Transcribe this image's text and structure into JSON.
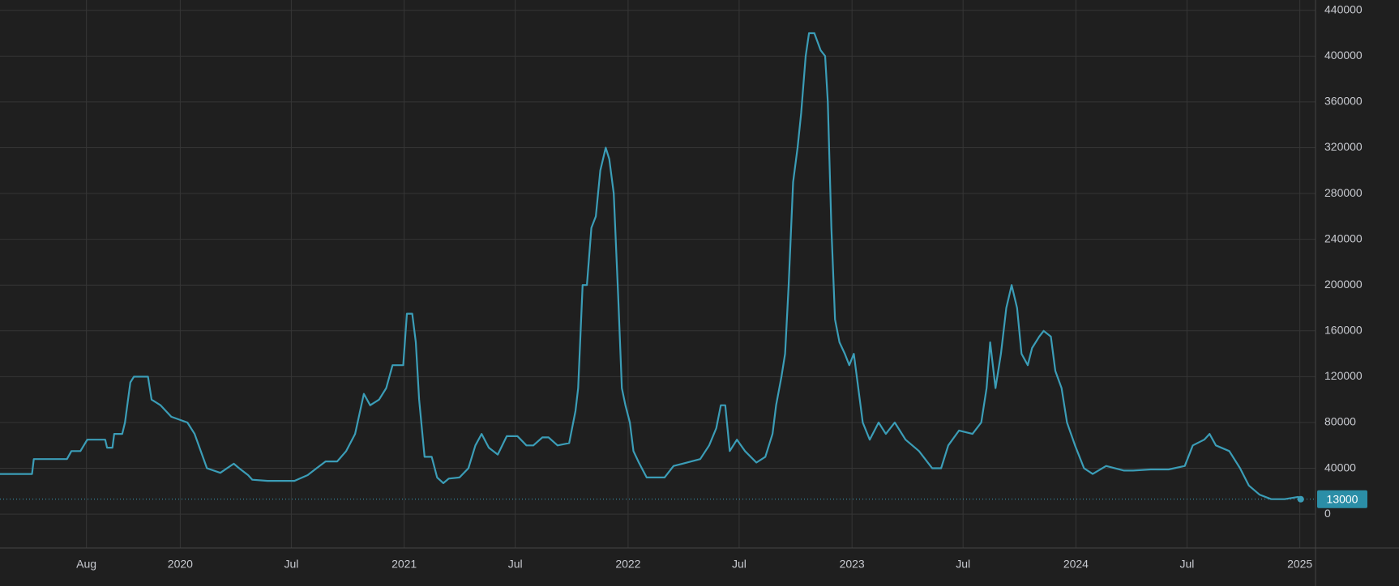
{
  "chart_data": {
    "type": "line",
    "x": [
      2019.195,
      2019.338,
      2019.346,
      2019.494,
      2019.514,
      2019.554,
      2019.585,
      2019.665,
      2019.673,
      2019.697,
      2019.705,
      2019.741,
      2019.753,
      2019.777,
      2019.793,
      2019.856,
      2019.872,
      2019.912,
      2019.96,
      2020.032,
      2020.064,
      2020.119,
      2020.179,
      2020.239,
      2020.263,
      2020.303,
      2020.322,
      2020.39,
      2020.51,
      2020.569,
      2020.609,
      2020.649,
      2020.701,
      2020.741,
      2020.781,
      2020.82,
      2020.848,
      2020.888,
      2020.92,
      2020.948,
      2020.996,
      2021.012,
      2021.036,
      2021.052,
      2021.067,
      2021.091,
      2021.123,
      2021.147,
      2021.175,
      2021.199,
      2021.247,
      2021.287,
      2021.318,
      2021.346,
      2021.378,
      2021.418,
      2021.458,
      2021.506,
      2021.546,
      2021.577,
      2021.617,
      2021.645,
      2021.685,
      2021.737,
      2021.765,
      2021.777,
      2021.797,
      2021.816,
      2021.836,
      2021.856,
      2021.876,
      2021.9,
      2021.916,
      2021.936,
      2021.956,
      2021.972,
      2021.988,
      2022.008,
      2022.024,
      2022.048,
      2022.083,
      2022.163,
      2022.203,
      2022.243,
      2022.322,
      2022.362,
      2022.394,
      2022.414,
      2022.434,
      2022.454,
      2022.486,
      2022.522,
      2022.573,
      2022.613,
      2022.645,
      2022.661,
      2022.685,
      2022.701,
      2022.717,
      2022.737,
      2022.757,
      2022.773,
      2022.793,
      2022.808,
      2022.832,
      2022.86,
      2022.88,
      2022.892,
      2022.908,
      2022.924,
      2022.944,
      2022.968,
      2022.988,
      2023.008,
      2023.028,
      2023.048,
      2023.079,
      2023.119,
      2023.151,
      2023.191,
      2023.239,
      2023.299,
      2023.358,
      2023.398,
      2023.43,
      2023.478,
      2023.538,
      2023.577,
      2023.601,
      2023.617,
      2023.641,
      2023.665,
      2023.689,
      2023.713,
      2023.737,
      2023.757,
      2023.785,
      2023.804,
      2023.836,
      2023.856,
      2023.888,
      2023.908,
      2023.936,
      2023.96,
      2023.996,
      2024.036,
      2024.075,
      2024.135,
      2024.215,
      2024.255,
      2024.334,
      2024.414,
      2024.486,
      2024.522,
      2024.573,
      2024.597,
      2024.625,
      2024.685,
      2024.733,
      2024.772,
      2024.82,
      2024.872,
      2024.932,
      2024.992,
      2025.004
    ],
    "series": [
      {
        "color": "#3b9db7",
        "values": [
          35000,
          35000,
          48000,
          48000,
          55000,
          55000,
          65000,
          65000,
          58000,
          58000,
          70000,
          70000,
          80000,
          115000,
          120000,
          120000,
          100000,
          95000,
          85000,
          80000,
          70000,
          40000,
          36000,
          44000,
          40000,
          34000,
          30000,
          29000,
          29000,
          34000,
          40000,
          46000,
          46000,
          55000,
          70000,
          105000,
          95000,
          100000,
          110000,
          130000,
          130000,
          175000,
          175000,
          150000,
          100000,
          50000,
          50000,
          32000,
          27000,
          31000,
          32000,
          40000,
          60000,
          70000,
          58000,
          52000,
          68000,
          68000,
          60000,
          60000,
          67000,
          67000,
          60000,
          62000,
          90000,
          110000,
          200000,
          200000,
          250000,
          260000,
          300000,
          320000,
          310000,
          280000,
          190000,
          110000,
          95000,
          80000,
          55000,
          45000,
          32000,
          32000,
          42000,
          44000,
          48000,
          60000,
          75000,
          95000,
          95000,
          55000,
          65000,
          55000,
          45000,
          50000,
          70000,
          95000,
          120000,
          140000,
          200000,
          290000,
          320000,
          350000,
          400000,
          420000,
          420000,
          405000,
          400000,
          360000,
          250000,
          170000,
          150000,
          140000,
          130000,
          140000,
          110000,
          80000,
          65000,
          80000,
          70000,
          80000,
          65000,
          55000,
          40000,
          40000,
          60000,
          73000,
          70000,
          80000,
          110000,
          150000,
          110000,
          140000,
          180000,
          200000,
          180000,
          140000,
          130000,
          145000,
          155000,
          160000,
          155000,
          125000,
          110000,
          80000,
          60000,
          40000,
          35000,
          42000,
          38000,
          38000,
          39000,
          39000,
          42000,
          60000,
          65000,
          70000,
          60000,
          55000,
          40000,
          25000,
          17000,
          13000,
          13000,
          15000,
          13000
        ]
      }
    ],
    "xlim": [
      2019.195,
      2025.07
    ],
    "xticks": [
      {
        "value": 2019.581,
        "label": "Aug"
      },
      2020,
      {
        "value": 2020.496,
        "label": "Jul"
      },
      2021,
      {
        "value": 2021.496,
        "label": "Jul"
      },
      2022,
      {
        "value": 2022.496,
        "label": "Jul"
      },
      2023,
      {
        "value": 2023.496,
        "label": "Jul"
      },
      2024,
      {
        "value": 2024.496,
        "label": "Jul"
      },
      2025
    ],
    "ylim": [
      -29600,
      449000
    ],
    "yticks": [
      0,
      40000,
      80000,
      120000,
      160000,
      200000,
      240000,
      280000,
      320000,
      360000,
      400000,
      440000
    ],
    "grid": true
  }
}
